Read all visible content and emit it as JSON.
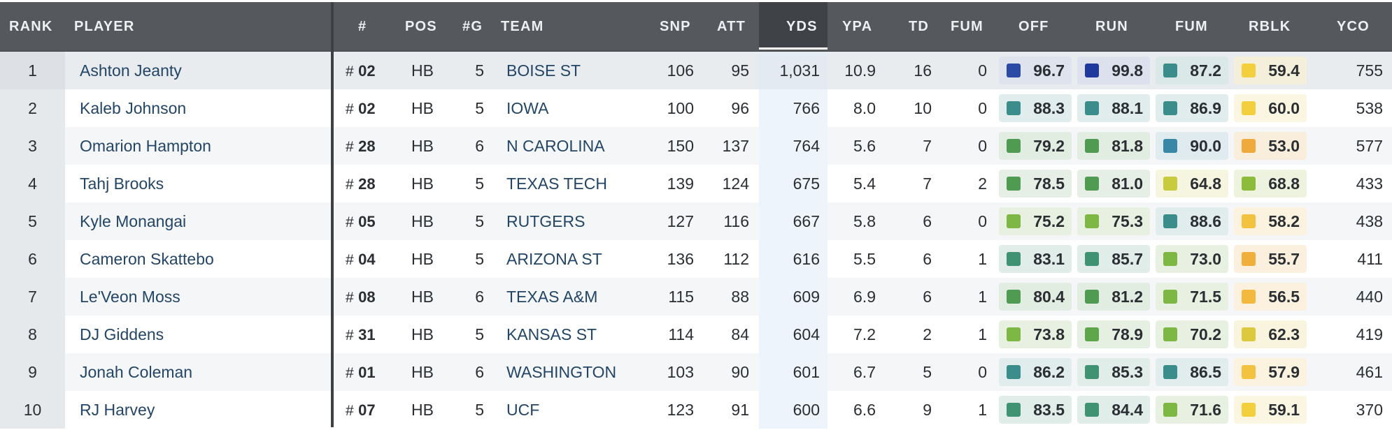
{
  "columns": {
    "rank": "RANK",
    "player": "PLAYER",
    "jersey": "#",
    "pos": "POS",
    "games": "#G",
    "team": "TEAM",
    "snp": "SNP",
    "att": "ATT",
    "yds": "YDS",
    "ypa": "YPA",
    "td": "TD",
    "fum": "FUM",
    "off": "OFF",
    "run": "RUN",
    "fum_grade": "FUM",
    "rblk": "RBLK",
    "yco": "YCO"
  },
  "jersey_prefix": "#",
  "sorted_column": "YDS",
  "colors": {
    "header_bg": "#55595e",
    "sorted_header_bg": "#3f4247",
    "grade_elite_blue": "#2a4aa6",
    "grade_teal": "#3b8d8c",
    "grade_green": "#4f9b52",
    "grade_lightgreen": "#7cb843",
    "grade_yellowgreen": "#c9cb3e",
    "grade_yellow": "#f3cf3e",
    "grade_orange": "#f0a93b"
  },
  "rows": [
    {
      "rank": "1",
      "player": "Ashton Jeanty",
      "jersey": "02",
      "pos": "HB",
      "games": "5",
      "team": "BOISE ST",
      "snp": "106",
      "att": "95",
      "yds": "1,031",
      "ypa": "10.9",
      "td": "16",
      "fum": "0",
      "off": {
        "value": "96.7",
        "color": "#2a4aa6",
        "bg": "#dfe3ee"
      },
      "run": {
        "value": "99.8",
        "color": "#1f3a9c",
        "bg": "#dde1ee"
      },
      "fum_grade": {
        "value": "87.2",
        "color": "#3b8d8c",
        "bg": "#dbe8e8"
      },
      "rblk": {
        "value": "59.4",
        "color": "#f3cf3e",
        "bg": "#f4efda"
      },
      "yco": "755"
    },
    {
      "rank": "2",
      "player": "Kaleb Johnson",
      "jersey": "02",
      "pos": "HB",
      "games": "5",
      "team": "IOWA",
      "snp": "100",
      "att": "96",
      "yds": "766",
      "ypa": "8.0",
      "td": "10",
      "fum": "0",
      "off": {
        "value": "88.3",
        "color": "#3b8d8c",
        "bg": "#e1eded"
      },
      "run": {
        "value": "88.1",
        "color": "#3b8d8c",
        "bg": "#e1eded"
      },
      "fum_grade": {
        "value": "86.9",
        "color": "#3b8d8c",
        "bg": "#e1eded"
      },
      "rblk": {
        "value": "60.0",
        "color": "#f3cf3e",
        "bg": "#fbf6e1"
      },
      "yco": "538"
    },
    {
      "rank": "3",
      "player": "Omarion Hampton",
      "jersey": "28",
      "pos": "HB",
      "games": "6",
      "team": "N CAROLINA",
      "snp": "150",
      "att": "137",
      "yds": "764",
      "ypa": "5.6",
      "td": "7",
      "fum": "0",
      "off": {
        "value": "79.2",
        "color": "#4f9b52",
        "bg": "#e2ede2"
      },
      "run": {
        "value": "81.8",
        "color": "#4f9b52",
        "bg": "#e2ede2"
      },
      "fum_grade": {
        "value": "90.0",
        "color": "#3a86a6",
        "bg": "#e0ebf0"
      },
      "rblk": {
        "value": "53.0",
        "color": "#f0a93b",
        "bg": "#f9eedb"
      },
      "yco": "577"
    },
    {
      "rank": "4",
      "player": "Tahj Brooks",
      "jersey": "28",
      "pos": "HB",
      "games": "5",
      "team": "TEXAS TECH",
      "snp": "139",
      "att": "124",
      "yds": "675",
      "ypa": "5.4",
      "td": "7",
      "fum": "2",
      "off": {
        "value": "78.5",
        "color": "#4f9b52",
        "bg": "#e5efe5"
      },
      "run": {
        "value": "81.0",
        "color": "#4f9b52",
        "bg": "#e5efe5"
      },
      "fum_grade": {
        "value": "64.8",
        "color": "#c9cb3e",
        "bg": "#f6f6e0"
      },
      "rblk": {
        "value": "68.8",
        "color": "#8dbb3c",
        "bg": "#edf3df"
      },
      "yco": "433"
    },
    {
      "rank": "5",
      "player": "Kyle Monangai",
      "jersey": "05",
      "pos": "HB",
      "games": "5",
      "team": "RUTGERS",
      "snp": "127",
      "att": "116",
      "yds": "667",
      "ypa": "5.8",
      "td": "6",
      "fum": "0",
      "off": {
        "value": "75.2",
        "color": "#7cb843",
        "bg": "#e8f1e1"
      },
      "run": {
        "value": "75.3",
        "color": "#7cb843",
        "bg": "#e8f1e1"
      },
      "fum_grade": {
        "value": "88.6",
        "color": "#3b8d8c",
        "bg": "#e1eded"
      },
      "rblk": {
        "value": "58.2",
        "color": "#f3c23e",
        "bg": "#fbf3df"
      },
      "yco": "438"
    },
    {
      "rank": "6",
      "player": "Cameron Skattebo",
      "jersey": "04",
      "pos": "HB",
      "games": "5",
      "team": "ARIZONA ST",
      "snp": "136",
      "att": "112",
      "yds": "616",
      "ypa": "5.5",
      "td": "6",
      "fum": "1",
      "off": {
        "value": "83.1",
        "color": "#3f9272",
        "bg": "#e1ede8"
      },
      "run": {
        "value": "85.7",
        "color": "#3f9272",
        "bg": "#e1ede8"
      },
      "fum_grade": {
        "value": "73.0",
        "color": "#7cb843",
        "bg": "#e8f1e1"
      },
      "rblk": {
        "value": "55.7",
        "color": "#f0ae3b",
        "bg": "#fbf0dd"
      },
      "yco": "411"
    },
    {
      "rank": "7",
      "player": "Le'Veon Moss",
      "jersey": "08",
      "pos": "HB",
      "games": "6",
      "team": "TEXAS A&M",
      "snp": "115",
      "att": "88",
      "yds": "609",
      "ypa": "6.9",
      "td": "6",
      "fum": "1",
      "off": {
        "value": "80.4",
        "color": "#4f9b52",
        "bg": "#e2ede2"
      },
      "run": {
        "value": "81.2",
        "color": "#4f9b52",
        "bg": "#e2ede2"
      },
      "fum_grade": {
        "value": "71.5",
        "color": "#7cb843",
        "bg": "#e8f1e1"
      },
      "rblk": {
        "value": "56.5",
        "color": "#f3b93e",
        "bg": "#fbf1de"
      },
      "yco": "440"
    },
    {
      "rank": "8",
      "player": "DJ Giddens",
      "jersey": "31",
      "pos": "HB",
      "games": "5",
      "team": "KANSAS ST",
      "snp": "114",
      "att": "84",
      "yds": "604",
      "ypa": "7.2",
      "td": "2",
      "fum": "1",
      "off": {
        "value": "73.8",
        "color": "#7cb843",
        "bg": "#e8f1e1"
      },
      "run": {
        "value": "78.9",
        "color": "#5ea64a",
        "bg": "#e5efe2"
      },
      "fum_grade": {
        "value": "70.2",
        "color": "#7cb843",
        "bg": "#e8f1e1"
      },
      "rblk": {
        "value": "62.3",
        "color": "#dcc93d",
        "bg": "#f8f4de"
      },
      "yco": "419"
    },
    {
      "rank": "9",
      "player": "Jonah Coleman",
      "jersey": "01",
      "pos": "HB",
      "games": "6",
      "team": "WASHINGTON",
      "snp": "103",
      "att": "90",
      "yds": "601",
      "ypa": "6.7",
      "td": "5",
      "fum": "0",
      "off": {
        "value": "86.2",
        "color": "#3b8d8c",
        "bg": "#e1eded"
      },
      "run": {
        "value": "85.3",
        "color": "#3f9272",
        "bg": "#e1ede8"
      },
      "fum_grade": {
        "value": "86.5",
        "color": "#3b8d8c",
        "bg": "#e1eded"
      },
      "rblk": {
        "value": "57.9",
        "color": "#f3c23e",
        "bg": "#fbf3df"
      },
      "yco": "461"
    },
    {
      "rank": "10",
      "player": "RJ Harvey",
      "jersey": "07",
      "pos": "HB",
      "games": "5",
      "team": "UCF",
      "snp": "123",
      "att": "91",
      "yds": "600",
      "ypa": "6.6",
      "td": "9",
      "fum": "1",
      "off": {
        "value": "83.5",
        "color": "#3f9272",
        "bg": "#e1ede8"
      },
      "run": {
        "value": "84.4",
        "color": "#3f9272",
        "bg": "#e1ede8"
      },
      "fum_grade": {
        "value": "71.6",
        "color": "#7cb843",
        "bg": "#e8f1e1"
      },
      "rblk": {
        "value": "59.1",
        "color": "#f3cf3e",
        "bg": "#fbf6e1"
      },
      "yco": "370"
    }
  ]
}
